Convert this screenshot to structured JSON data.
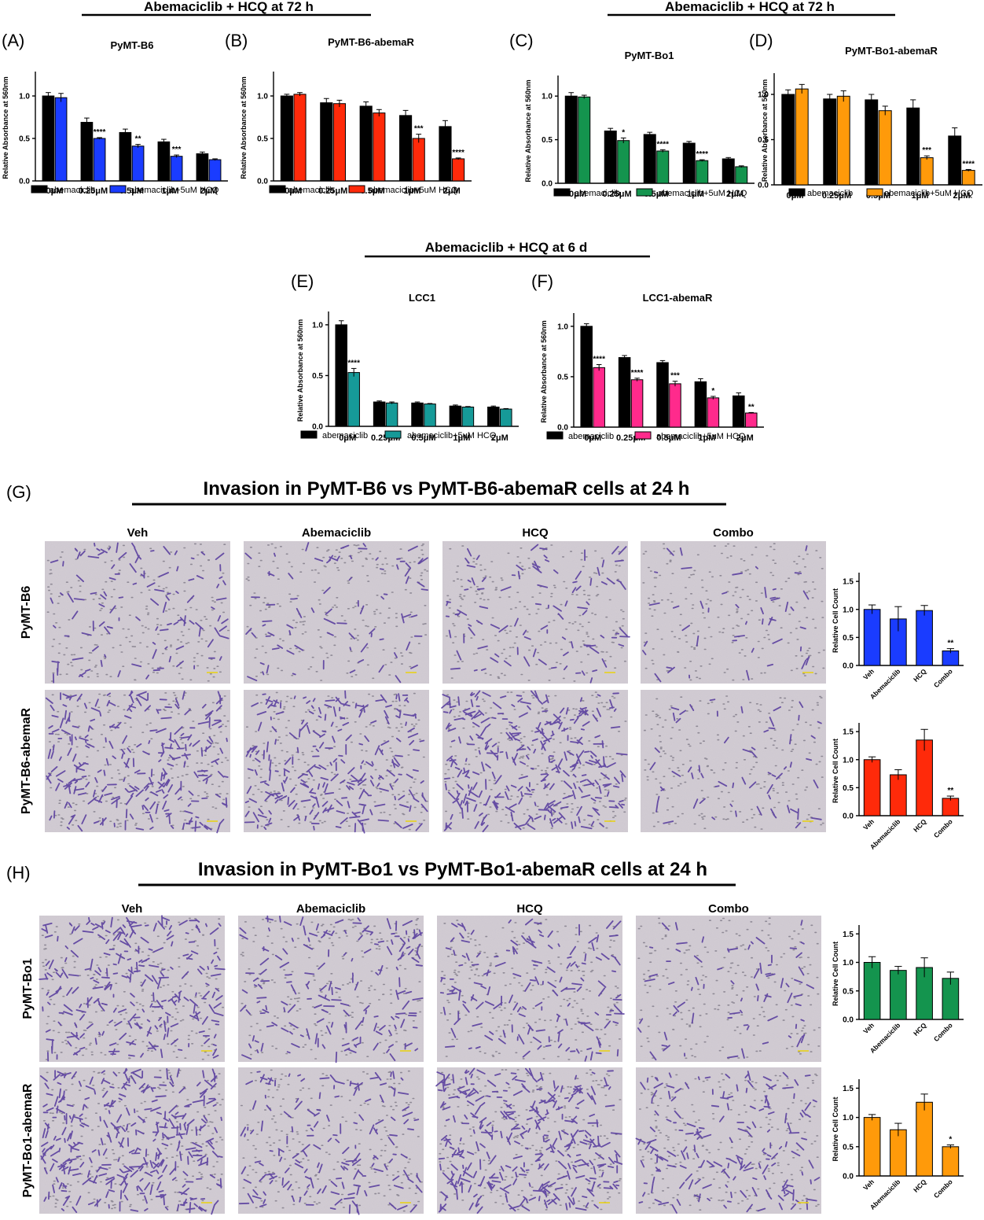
{
  "headers": {
    "top_left": "Abemaciclib + HCQ at 72 h",
    "top_right": "Abemaciclib + HCQ at 72 h",
    "middle": "Abemaciclib + HCQ at 6 d",
    "g_title": "Invasion in PyMT-B6 vs PyMT-B6-abemaR cells at 24 h",
    "h_title": "Invasion in PyMT-Bo1 vs PyMT-Bo1-abemaR cells at 24 h"
  },
  "panel_labels": [
    "(A)",
    "(B)",
    "(C)",
    "(D)",
    "(E)",
    "(F)",
    "(G)",
    "(H)"
  ],
  "micrographs": {
    "columns": [
      "Veh",
      "Abemaciclib",
      "HCQ",
      "Combo"
    ],
    "g_rows": [
      "PyMT-B6",
      "PyMT-B6-abemaR"
    ],
    "h_rows": [
      "PyMT-Bo1",
      "PyMT-Bo1-abemaR"
    ],
    "background_color": "#d3cdd4",
    "stain_color": "#5a3f9e"
  },
  "colors": {
    "black": "#000000",
    "blue": "#1a3cff",
    "red": "#ff2a0a",
    "green": "#14944e",
    "orange": "#ff9a0a",
    "teal": "#169a98",
    "pink": "#ff2a8c"
  },
  "chart_data": [
    {
      "id": "A",
      "type": "bar",
      "title": "PyMT-B6",
      "ylabel": "Relative Absorbance at 560nm",
      "ylim": [
        0,
        1.25
      ],
      "yticks": [
        "0.0",
        "0.5",
        "1.0"
      ],
      "categories": [
        "0μM",
        "0.25μM",
        "0.5μM",
        "1μM",
        "2μM"
      ],
      "series": [
        {
          "name": "abemaciclib",
          "color": "#000000",
          "values": [
            1.0,
            0.69,
            0.57,
            0.46,
            0.32
          ],
          "errors": [
            0.04,
            0.05,
            0.04,
            0.03,
            0.02
          ]
        },
        {
          "name": "abemaciclib+5uM HCQ",
          "color": "#1a3cff",
          "values": [
            0.98,
            0.5,
            0.41,
            0.29,
            0.25
          ],
          "errors": [
            0.05,
            0.01,
            0.02,
            0.015,
            0.01
          ]
        }
      ],
      "annotations": [
        "",
        "****",
        "**",
        "***",
        ""
      ]
    },
    {
      "id": "B",
      "type": "bar",
      "title": "PyMT-B6-abemaR",
      "ylabel": "Relative Absorbance at 560nm",
      "ylim": [
        0,
        1.25
      ],
      "yticks": [
        "0.0",
        "0.5",
        "1.0"
      ],
      "categories": [
        "0μM",
        "0.25μM",
        "0.5μM",
        "1μM",
        "2μM"
      ],
      "series": [
        {
          "name": "abemaciclib",
          "color": "#000000",
          "values": [
            1.0,
            0.92,
            0.88,
            0.77,
            0.64
          ],
          "errors": [
            0.02,
            0.05,
            0.05,
            0.06,
            0.07
          ]
        },
        {
          "name": "abemaciclib+5uM HCQ",
          "color": "#ff2a0a",
          "values": [
            1.02,
            0.91,
            0.8,
            0.5,
            0.26
          ],
          "errors": [
            0.02,
            0.04,
            0.04,
            0.05,
            0.01
          ]
        }
      ],
      "annotations": [
        "",
        "",
        "",
        "***",
        "****"
      ]
    },
    {
      "id": "C",
      "type": "bar",
      "title": "PyMT-Bo1",
      "ylabel": "Relative Absorbance at 560nm",
      "ylim": [
        0,
        1.2
      ],
      "yticks": [
        "0.0",
        "0.5",
        "1.0"
      ],
      "categories": [
        "0μM",
        "0.25μM",
        "0.5μM",
        "1μM",
        "2μM"
      ],
      "series": [
        {
          "name": "abemaciclib",
          "color": "#000000",
          "values": [
            1.0,
            0.6,
            0.56,
            0.46,
            0.28
          ],
          "errors": [
            0.04,
            0.03,
            0.025,
            0.02,
            0.015
          ]
        },
        {
          "name": "abemaciclib+5uM HCQ",
          "color": "#14944e",
          "values": [
            0.99,
            0.49,
            0.37,
            0.26,
            0.19
          ],
          "errors": [
            0.02,
            0.03,
            0.015,
            0.01,
            0.01
          ]
        }
      ],
      "annotations": [
        "",
        "*",
        "****",
        "****",
        ""
      ]
    },
    {
      "id": "D",
      "type": "bar",
      "title": "PyMT-Bo1-abemaR",
      "ylabel": "Relative Absorbance at 560nm",
      "ylim": [
        0,
        1.2
      ],
      "yticks": [
        "0.0",
        "0.5",
        "1.0"
      ],
      "categories": [
        "0μM",
        "0.25μM",
        "0.5μM",
        "1μM",
        "2μM"
      ],
      "series": [
        {
          "name": "abemaciclib",
          "color": "#000000",
          "values": [
            1.0,
            0.95,
            0.94,
            0.85,
            0.54
          ],
          "errors": [
            0.05,
            0.05,
            0.06,
            0.09,
            0.09
          ]
        },
        {
          "name": "abemaciclib+5uM HCQ",
          "color": "#ff9a0a",
          "values": [
            1.06,
            0.98,
            0.82,
            0.3,
            0.16
          ],
          "errors": [
            0.05,
            0.06,
            0.05,
            0.02,
            0.01
          ]
        }
      ],
      "annotations": [
        "",
        "",
        "",
        "***",
        "****"
      ]
    },
    {
      "id": "E",
      "type": "bar",
      "title": "LCC1",
      "ylabel": "Relative Absorbance at 560nm",
      "ylim": [
        0,
        1.1
      ],
      "yticks": [
        "0.0",
        "0.5",
        "1.0"
      ],
      "categories": [
        "0μM",
        "0.25μM",
        "0.5μM",
        "1μM",
        "2μM"
      ],
      "series": [
        {
          "name": "abemaciclib",
          "color": "#000000",
          "values": [
            1.0,
            0.24,
            0.23,
            0.2,
            0.19
          ],
          "errors": [
            0.04,
            0.01,
            0.01,
            0.01,
            0.01
          ]
        },
        {
          "name": "abemaciclib+5uM HCQ",
          "color": "#169a98",
          "values": [
            0.53,
            0.23,
            0.22,
            0.19,
            0.17
          ],
          "errors": [
            0.04,
            0.01,
            0.005,
            0.005,
            0.005
          ]
        }
      ],
      "annotations": [
        "****",
        "",
        "",
        "",
        ""
      ]
    },
    {
      "id": "F",
      "type": "bar",
      "title": "LCC1-abemaR",
      "ylabel": "Relative Absorbance at 560nm",
      "ylim": [
        0,
        1.1
      ],
      "yticks": [
        "0.0",
        "0.5",
        "1.0"
      ],
      "categories": [
        "0μM",
        "0.25μM",
        "0.5μM",
        "1μM",
        "2μM"
      ],
      "series": [
        {
          "name": "abemaciclib",
          "color": "#000000",
          "values": [
            1.0,
            0.69,
            0.64,
            0.45,
            0.31
          ],
          "errors": [
            0.025,
            0.02,
            0.02,
            0.03,
            0.03
          ]
        },
        {
          "name": "abemaciclib+5uM HCQ",
          "color": "#ff2a8c",
          "values": [
            0.59,
            0.47,
            0.43,
            0.29,
            0.14
          ],
          "errors": [
            0.03,
            0.015,
            0.025,
            0.015,
            0.005
          ]
        }
      ],
      "annotations": [
        "****",
        "****",
        "***",
        "*",
        "**"
      ]
    },
    {
      "id": "G1",
      "type": "bar",
      "title": "",
      "ylabel": "Relative Cell Count",
      "ylim": [
        0,
        1.6
      ],
      "yticks": [
        "0.0",
        "0.5",
        "1.0",
        "1.5"
      ],
      "categories": [
        "Veh",
        "Abemaciclib",
        "HCQ",
        "Combo"
      ],
      "series": [
        {
          "name": "",
          "color": "#1a3cff",
          "values": [
            1.0,
            0.83,
            0.98,
            0.26
          ],
          "errors": [
            0.08,
            0.22,
            0.09,
            0.04
          ]
        }
      ],
      "annotations": [
        "",
        "",
        "",
        "**"
      ]
    },
    {
      "id": "G2",
      "type": "bar",
      "title": "",
      "ylabel": "Relative Cell Count",
      "ylim": [
        0,
        1.6
      ],
      "yticks": [
        "0.0",
        "0.5",
        "1.0",
        "1.5"
      ],
      "categories": [
        "Veh",
        "Abemaciclib",
        "HCQ",
        "Combo"
      ],
      "series": [
        {
          "name": "",
          "color": "#ff2a0a",
          "values": [
            1.0,
            0.73,
            1.35,
            0.31
          ],
          "errors": [
            0.05,
            0.09,
            0.19,
            0.04
          ]
        }
      ],
      "annotations": [
        "",
        "",
        "",
        "**"
      ]
    },
    {
      "id": "H1",
      "type": "bar",
      "title": "",
      "ylabel": "Relative Cell Count",
      "ylim": [
        0,
        1.6
      ],
      "yticks": [
        "0.0",
        "0.5",
        "1.0",
        "1.5"
      ],
      "categories": [
        "Veh",
        "Abemaciclib",
        "HCQ",
        "Combo"
      ],
      "series": [
        {
          "name": "",
          "color": "#14944e",
          "values": [
            1.0,
            0.86,
            0.91,
            0.72
          ],
          "errors": [
            0.1,
            0.07,
            0.17,
            0.11
          ]
        }
      ],
      "annotations": [
        "",
        "",
        "",
        ""
      ]
    },
    {
      "id": "H2",
      "type": "bar",
      "title": "",
      "ylabel": "Relative Cell Count",
      "ylim": [
        0,
        1.6
      ],
      "yticks": [
        "0.0",
        "0.5",
        "1.0",
        "1.5"
      ],
      "categories": [
        "Veh",
        "Abemaciclib",
        "HCQ",
        "Combo"
      ],
      "series": [
        {
          "name": "",
          "color": "#ff9a0a",
          "values": [
            1.0,
            0.79,
            1.26,
            0.5
          ],
          "errors": [
            0.05,
            0.11,
            0.14,
            0.03
          ]
        }
      ],
      "annotations": [
        "",
        "",
        "",
        "*"
      ]
    }
  ]
}
